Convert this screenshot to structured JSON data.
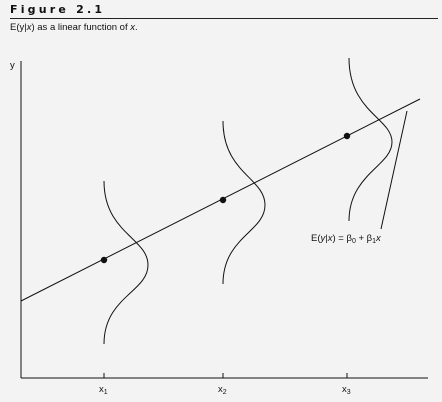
{
  "figure": {
    "label": "Figure 2.1",
    "caption_parts": [
      "E(y|",
      "x",
      ") as a linear function of ",
      "x",
      "."
    ]
  },
  "axes": {
    "y_label": "y",
    "x_ticks": [
      {
        "base": "x",
        "sub": "1"
      },
      {
        "base": "x",
        "sub": "2"
      },
      {
        "base": "x",
        "sub": "3"
      }
    ]
  },
  "equation": {
    "lhs_prefix": "E(",
    "lhs_var_y": "y",
    "lhs_bar": "|",
    "lhs_var_x": "x",
    "lhs_close": ")",
    "equals": " = ",
    "beta": "β",
    "b0_sub": "0",
    "plus": " + ",
    "b1_sub": "1",
    "rhs_var": "x"
  },
  "chart_data": {
    "type": "line",
    "title": "",
    "xlabel": "",
    "ylabel": "y",
    "description_points": [
      {
        "x": "x1",
        "y": "E(y|x1)"
      },
      {
        "x": "x2",
        "y": "E(y|x2)"
      },
      {
        "x": "x3",
        "y": "E(y|x3)"
      }
    ],
    "series": [
      {
        "name": "E(y|x) = β0 + β1x"
      }
    ],
    "conditional_distributions_shown": 3
  }
}
